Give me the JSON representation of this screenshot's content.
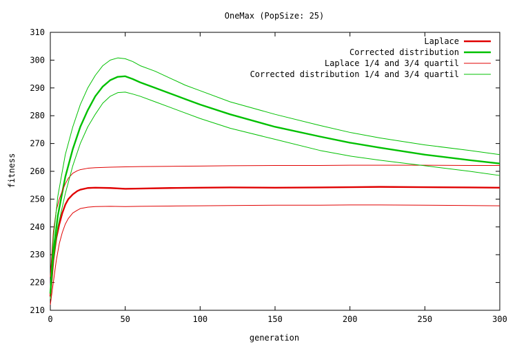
{
  "chart_data": {
    "type": "line",
    "title": "OneMax (PopSize: 25)",
    "xlabel": "generation",
    "ylabel": "fitness",
    "xlim": [
      0,
      300
    ],
    "ylim": [
      210,
      310
    ],
    "xticks": [
      0,
      50,
      100,
      150,
      200,
      250,
      300
    ],
    "yticks": [
      210,
      220,
      230,
      240,
      250,
      260,
      270,
      280,
      290,
      300,
      310
    ],
    "grid": false,
    "legend_position": "top-right",
    "series": [
      {
        "name": "Laplace",
        "color": "#e00000",
        "style": "thick",
        "x": [
          0,
          2,
          4,
          6,
          8,
          10,
          12,
          15,
          18,
          20,
          25,
          30,
          40,
          50,
          60,
          80,
          100,
          120,
          150,
          180,
          200,
          220,
          250,
          280,
          300
        ],
        "y": [
          215,
          228,
          236,
          241,
          245,
          248,
          250,
          251.7,
          252.9,
          253.4,
          254,
          254.1,
          254,
          253.7,
          253.8,
          254,
          254.1,
          254.2,
          254.1,
          254.2,
          254.3,
          254.4,
          254.3,
          254.2,
          254.1
        ]
      },
      {
        "name": "Corrected distribution",
        "color": "#00c000",
        "style": "thick",
        "x": [
          0,
          2,
          5,
          10,
          15,
          20,
          25,
          30,
          35,
          40,
          45,
          50,
          55,
          60,
          70,
          80,
          90,
          100,
          120,
          150,
          180,
          200,
          220,
          250,
          280,
          300
        ],
        "y": [
          216,
          231,
          244,
          258,
          268,
          276,
          282,
          287,
          290.5,
          292.8,
          294,
          294.2,
          293.2,
          292,
          290,
          288,
          286,
          284,
          280.5,
          276,
          272.5,
          270.3,
          268.5,
          266,
          264,
          262.8
        ]
      },
      {
        "name": "Laplace 1/4 and 3/4 quartil",
        "color": "#e00000",
        "style": "thin",
        "x": [
          0,
          2,
          4,
          6,
          8,
          10,
          12,
          15,
          18,
          20,
          25,
          30,
          40,
          50,
          60,
          80,
          100,
          120,
          150,
          180,
          200,
          220,
          250,
          280,
          300
        ],
        "y": [
          222,
          238,
          246,
          250,
          253,
          255.5,
          257.5,
          259.3,
          260.2,
          260.6,
          261.1,
          261.3,
          261.5,
          261.6,
          261.7,
          261.8,
          261.9,
          262,
          262.1,
          262.1,
          262.2,
          262.2,
          262.2,
          262.1,
          262.1
        ],
        "y2": [
          212,
          220,
          228,
          234,
          238,
          241,
          243,
          245,
          246,
          246.6,
          247.1,
          247.3,
          247.4,
          247.3,
          247.4,
          247.5,
          247.6,
          247.7,
          247.8,
          247.8,
          247.9,
          247.9,
          247.8,
          247.7,
          247.6
        ]
      },
      {
        "name": "Corrected distribution 1/4 and 3/4 quartil",
        "color": "#00c000",
        "style": "thin",
        "x": [
          0,
          2,
          5,
          10,
          15,
          20,
          25,
          30,
          35,
          40,
          45,
          50,
          55,
          60,
          70,
          80,
          90,
          100,
          120,
          150,
          180,
          200,
          220,
          250,
          280,
          300
        ],
        "y": [
          218,
          236,
          251,
          266,
          276,
          284,
          290,
          294.5,
          298,
          300,
          300.8,
          300.5,
          299.5,
          298,
          296,
          293.5,
          291,
          289,
          285,
          280.5,
          276.5,
          274,
          272,
          269.5,
          267.5,
          266
        ],
        "y2": [
          214,
          228,
          240,
          252,
          262,
          270,
          276,
          280.5,
          284.5,
          287,
          288.3,
          288.5,
          287.8,
          287,
          285,
          283,
          281,
          279,
          275.5,
          271.5,
          267.5,
          265.5,
          264,
          262,
          260,
          258.5
        ]
      }
    ]
  }
}
